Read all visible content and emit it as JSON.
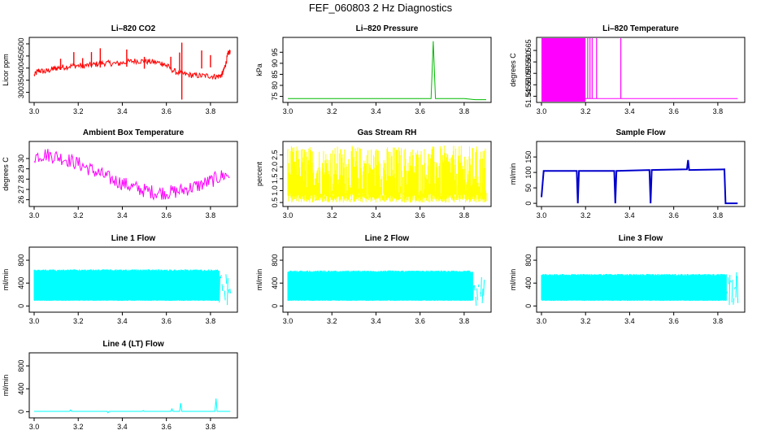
{
  "title": "FEF_060803  2 Hz Diagnostics",
  "chart_data": [
    {
      "type": "line",
      "title": "Li–820 CO2",
      "ylabel": "Licor ppm",
      "color": "#ff0000",
      "xlim": [
        3.0,
        3.9
      ],
      "ylim": [
        265,
        520
      ],
      "xticks": [
        "3.0",
        "3.2",
        "3.4",
        "3.6",
        "3.8"
      ],
      "yticks": [
        "300",
        "350",
        "400",
        "450",
        "500"
      ],
      "series": [
        {
          "x": [
            3.0,
            3.02,
            3.05,
            3.08,
            3.1,
            3.14,
            3.18,
            3.22,
            3.26,
            3.3,
            3.34,
            3.38,
            3.42,
            3.46,
            3.5,
            3.54,
            3.58,
            3.6,
            3.64,
            3.68,
            3.72,
            3.76,
            3.8,
            3.83,
            3.85,
            3.86,
            3.87,
            3.88,
            3.89
          ],
          "y": [
            370,
            390,
            385,
            395,
            400,
            405,
            410,
            410,
            412,
            420,
            420,
            418,
            425,
            430,
            428,
            425,
            420,
            410,
            385,
            375,
            370,
            368,
            368,
            365,
            370,
            390,
            420,
            460,
            470
          ]
        }
      ]
    },
    {
      "type": "line",
      "title": "Li–820 Pressure",
      "ylabel": "kPa",
      "color": "#00bb00",
      "xlim": [
        3.0,
        3.9
      ],
      "ylim": [
        73,
        101
      ],
      "xticks": [
        "3.0",
        "3.2",
        "3.4",
        "3.6",
        "3.8"
      ],
      "yticks": [
        "75",
        "80",
        "85",
        "90",
        "95"
      ],
      "series": [
        {
          "x": [
            3.0,
            3.1,
            3.2,
            3.3,
            3.4,
            3.5,
            3.6,
            3.65,
            3.66,
            3.67,
            3.7,
            3.8,
            3.85,
            3.9
          ],
          "y": [
            74,
            74,
            74,
            74,
            74,
            74,
            74,
            74,
            100,
            74,
            74,
            74,
            73.5,
            73.5
          ]
        }
      ]
    },
    {
      "type": "line",
      "title": "Li–820 Temperature",
      "ylabel": "degrees C",
      "color": "#ff00ff",
      "xlim": [
        3.0,
        3.9
      ],
      "ylim": [
        51.543,
        51.57
      ],
      "xticks": [
        "3.0",
        "3.2",
        "3.4",
        "3.6",
        "3.8"
      ],
      "yticks": [
        "51.545",
        "51.550",
        "51.555",
        "51.560",
        "51.565"
      ],
      "series": [
        {
          "x": [
            3.0,
            3.2,
            3.21,
            3.25,
            3.35,
            3.36,
            3.6,
            3.89
          ],
          "y": [
            51.544,
            51.544,
            51.544,
            51.544,
            51.544,
            51.544,
            51.544,
            51.544
          ]
        }
      ]
    },
    {
      "type": "line",
      "title": "Ambient Box Temperature",
      "ylabel": "degrees C",
      "color": "#ff00ff",
      "xlim": [
        3.0,
        3.9
      ],
      "ylim": [
        25.5,
        31.5
      ],
      "xticks": [
        "3.0",
        "3.2",
        "3.4",
        "3.6",
        "3.8"
      ],
      "yticks": [
        "26",
        "27",
        "28",
        "29",
        "30"
      ],
      "series": [
        {
          "x": [
            3.0,
            3.05,
            3.1,
            3.15,
            3.2,
            3.25,
            3.3,
            3.35,
            3.4,
            3.45,
            3.5,
            3.55,
            3.6,
            3.65,
            3.7,
            3.75,
            3.8,
            3.85,
            3.89
          ],
          "y": [
            30.2,
            30.4,
            30.2,
            29.9,
            29.5,
            29.0,
            28.5,
            28.0,
            27.6,
            27.2,
            26.9,
            26.7,
            26.7,
            26.8,
            27.1,
            27.4,
            27.8,
            28.3,
            28.5
          ]
        }
      ]
    },
    {
      "type": "line",
      "title": "Gas Stream RH",
      "ylabel": "percent",
      "color": "#ffff00",
      "xlim": [
        3.0,
        3.9
      ],
      "ylim": [
        0.4,
        3.0
      ],
      "xticks": [
        "3.0",
        "3.2",
        "3.4",
        "3.6",
        "3.8"
      ],
      "yticks": [
        "0.5",
        "1.0",
        "1.5",
        "2.0",
        "2.5"
      ],
      "series": [
        {
          "x": [
            3.0,
            3.2,
            3.4,
            3.6,
            3.8,
            3.85,
            3.89
          ],
          "y": [
            1.7,
            1.8,
            1.75,
            1.8,
            1.7,
            2.3,
            2.2
          ]
        }
      ]
    },
    {
      "type": "line",
      "title": "Sample Flow",
      "ylabel": "ml/min",
      "color": "#0000cc",
      "xlim": [
        3.0,
        3.9
      ],
      "ylim": [
        -5,
        195
      ],
      "xticks": [
        "3.0",
        "3.2",
        "3.4",
        "3.6",
        "3.8"
      ],
      "yticks": [
        "0",
        "50",
        "100",
        "150"
      ],
      "series": [
        {
          "x": [
            3.0,
            3.01,
            3.16,
            3.165,
            3.17,
            3.33,
            3.335,
            3.34,
            3.49,
            3.495,
            3.5,
            3.66,
            3.665,
            3.67,
            3.83,
            3.835,
            3.85,
            3.89
          ],
          "y": [
            20,
            105,
            105,
            0,
            105,
            105,
            0,
            105,
            108,
            0,
            108,
            110,
            140,
            108,
            110,
            0,
            0,
            0
          ]
        }
      ]
    },
    {
      "type": "line",
      "title": "Line 1 Flow",
      "ylabel": "ml/min",
      "color": "#00ffff",
      "xlim": [
        3.0,
        3.9
      ],
      "ylim": [
        -80,
        1000
      ],
      "xticks": [
        "3.0",
        "3.2",
        "3.4",
        "3.6",
        "3.8"
      ],
      "yticks": [
        "0",
        "400",
        "800"
      ],
      "series": [
        {
          "x": [
            3.0,
            3.2,
            3.4,
            3.6,
            3.8,
            3.9
          ],
          "y": [
            640,
            640,
            640,
            640,
            640,
            640
          ]
        },
        {
          "x": [
            3.0,
            3.2,
            3.4,
            3.6,
            3.8,
            3.9
          ],
          "y": [
            90,
            90,
            90,
            90,
            90,
            90
          ]
        }
      ]
    },
    {
      "type": "line",
      "title": "Line 2 Flow",
      "ylabel": "ml/min",
      "color": "#00ffff",
      "xlim": [
        3.0,
        3.9
      ],
      "ylim": [
        -80,
        1000
      ],
      "xticks": [
        "3.0",
        "3.2",
        "3.4",
        "3.6",
        "3.8"
      ],
      "yticks": [
        "0",
        "400",
        "800"
      ],
      "series": [
        {
          "x": [
            3.0,
            3.2,
            3.4,
            3.6,
            3.8,
            3.9
          ],
          "y": [
            620,
            620,
            620,
            620,
            620,
            620
          ]
        },
        {
          "x": [
            3.0,
            3.2,
            3.4,
            3.6,
            3.8,
            3.9
          ],
          "y": [
            90,
            90,
            90,
            90,
            90,
            90
          ]
        }
      ]
    },
    {
      "type": "line",
      "title": "Line 3 Flow",
      "ylabel": "ml/min",
      "color": "#00ffff",
      "xlim": [
        3.0,
        3.9
      ],
      "ylim": [
        -80,
        1000
      ],
      "xticks": [
        "3.0",
        "3.2",
        "3.4",
        "3.6",
        "3.8"
      ],
      "yticks": [
        "0",
        "400",
        "800"
      ],
      "series": [
        {
          "x": [
            3.0,
            3.2,
            3.4,
            3.6,
            3.8,
            3.9
          ],
          "y": [
            560,
            560,
            560,
            560,
            560,
            560
          ]
        },
        {
          "x": [
            3.0,
            3.2,
            3.4,
            3.6,
            3.8,
            3.9
          ],
          "y": [
            90,
            90,
            90,
            90,
            90,
            90
          ]
        }
      ]
    },
    {
      "type": "line",
      "title": "Line 4 (LT) Flow",
      "ylabel": "ml/min",
      "color": "#00ffff",
      "xlim": [
        3.0,
        3.9
      ],
      "ylim": [
        -80,
        1000
      ],
      "xticks": [
        "3.0",
        "3.2",
        "3.4",
        "3.6",
        "3.8"
      ],
      "yticks": [
        "0",
        "400",
        "800"
      ],
      "series": [
        {
          "x": [
            3.0,
            3.16,
            3.165,
            3.17,
            3.33,
            3.335,
            3.34,
            3.49,
            3.495,
            3.5,
            3.62,
            3.625,
            3.63,
            3.66,
            3.665,
            3.67,
            3.82,
            3.825,
            3.83,
            3.89
          ],
          "y": [
            5,
            5,
            30,
            5,
            5,
            -20,
            5,
            5,
            20,
            5,
            5,
            50,
            5,
            5,
            150,
            5,
            5,
            230,
            5,
            5
          ]
        }
      ]
    }
  ]
}
